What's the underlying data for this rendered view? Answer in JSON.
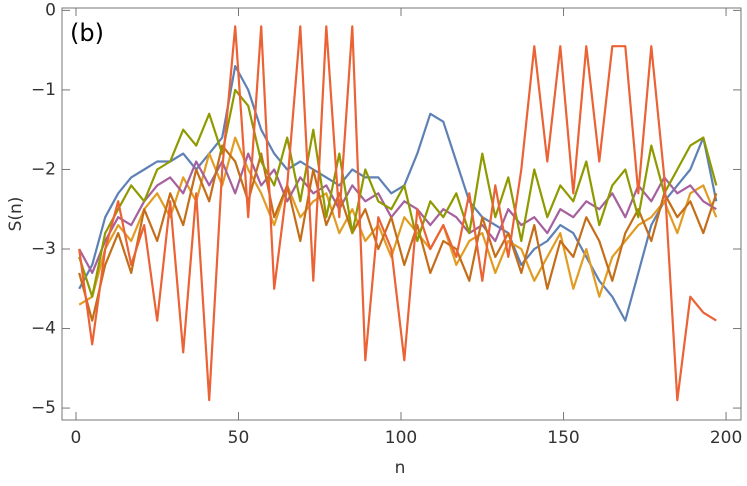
{
  "chart_data": {
    "type": "line",
    "annotation": "(b)",
    "x_label": "n",
    "y_label": "S(n)",
    "xlim": [
      -4.3,
      204.6
    ],
    "ylim": [
      -5.15,
      0.03
    ],
    "xticks": [
      0,
      50,
      100,
      150,
      200
    ],
    "yticks": [
      {
        "value": -5,
        "label": "−5"
      },
      {
        "value": -4,
        "label": "−4"
      },
      {
        "value": -3,
        "label": "−3"
      },
      {
        "value": -2,
        "label": "−2"
      },
      {
        "value": -1,
        "label": "−1"
      },
      0
    ],
    "x": [
      1,
      5,
      9,
      13,
      17,
      21,
      25,
      29,
      33,
      37,
      41,
      45,
      49,
      53,
      57,
      61,
      65,
      69,
      73,
      77,
      81,
      85,
      89,
      93,
      97,
      101,
      105,
      109,
      113,
      117,
      121,
      125,
      129,
      133,
      137,
      141,
      145,
      149,
      153,
      157,
      161,
      165,
      169,
      173,
      177,
      181,
      185,
      189,
      193,
      197
    ],
    "series": [
      {
        "color": "#5E81B5",
        "values": [
          -3.5,
          -3.2,
          -2.6,
          -2.3,
          -2.1,
          -2.0,
          -1.9,
          -1.9,
          -1.8,
          -2.0,
          -1.8,
          -1.6,
          -0.7,
          -1.0,
          -1.5,
          -1.8,
          -2.0,
          -1.9,
          -2.0,
          -2.1,
          -2.2,
          -2.0,
          -2.1,
          -2.1,
          -2.3,
          -2.2,
          -1.8,
          -1.3,
          -1.4,
          -1.9,
          -2.4,
          -2.6,
          -2.7,
          -2.8,
          -3.2,
          -3.0,
          -2.9,
          -2.7,
          -2.8,
          -3.1,
          -3.4,
          -3.6,
          -3.9,
          -3.3,
          -2.7,
          -2.4,
          -2.2,
          -2.0,
          -1.6,
          -2.4
        ]
      },
      {
        "color": "#E19C24",
        "values": [
          -3.7,
          -3.6,
          -3.0,
          -2.7,
          -2.9,
          -2.5,
          -2.3,
          -2.6,
          -2.1,
          -2.4,
          -1.8,
          -2.2,
          -1.6,
          -2.0,
          -2.3,
          -2.7,
          -2.2,
          -2.6,
          -2.4,
          -2.3,
          -2.8,
          -2.5,
          -2.9,
          -2.7,
          -3.1,
          -2.6,
          -2.8,
          -3.0,
          -2.7,
          -3.2,
          -2.9,
          -2.8,
          -3.3,
          -2.9,
          -3.0,
          -3.4,
          -3.1,
          -2.8,
          -3.5,
          -3.0,
          -3.6,
          -3.1,
          -2.9,
          -2.7,
          -2.6,
          -2.4,
          -2.8,
          -2.3,
          -2.2,
          -2.6
        ]
      },
      {
        "color": "#A5609D",
        "values": [
          -3.0,
          -3.3,
          -2.9,
          -2.6,
          -2.7,
          -2.4,
          -2.2,
          -2.1,
          -2.3,
          -1.9,
          -2.2,
          -1.9,
          -2.3,
          -1.8,
          -2.2,
          -2.0,
          -2.4,
          -2.1,
          -2.3,
          -2.2,
          -2.5,
          -2.2,
          -2.4,
          -2.3,
          -2.6,
          -2.4,
          -2.5,
          -2.7,
          -2.5,
          -2.6,
          -2.8,
          -2.7,
          -2.9,
          -2.5,
          -2.7,
          -2.6,
          -2.8,
          -2.5,
          -2.6,
          -2.4,
          -2.5,
          -2.3,
          -2.6,
          -2.2,
          -2.4,
          -2.1,
          -2.3,
          -2.2,
          -2.4,
          -2.5
        ]
      },
      {
        "color": "#C56E1A",
        "values": [
          -3.3,
          -3.9,
          -3.2,
          -2.8,
          -3.3,
          -2.5,
          -2.9,
          -2.3,
          -2.7,
          -2.0,
          -2.4,
          -1.7,
          -1.9,
          -2.4,
          -1.8,
          -2.6,
          -2.2,
          -2.9,
          -2.0,
          -2.7,
          -2.3,
          -2.8,
          -2.5,
          -3.0,
          -2.6,
          -3.2,
          -2.7,
          -3.3,
          -2.9,
          -3.0,
          -3.4,
          -2.6,
          -3.1,
          -2.8,
          -3.3,
          -2.7,
          -3.5,
          -2.9,
          -3.1,
          -2.6,
          -2.9,
          -3.4,
          -2.8,
          -2.5,
          -2.9,
          -2.3,
          -2.6,
          -2.4,
          -2.8,
          -2.3
        ]
      },
      {
        "color": "#8F9A00",
        "values": [
          -3.1,
          -3.6,
          -2.8,
          -2.5,
          -2.2,
          -2.4,
          -2.0,
          -1.9,
          -1.5,
          -1.7,
          -1.3,
          -1.8,
          -1.0,
          -1.2,
          -1.9,
          -2.2,
          -1.6,
          -2.4,
          -1.5,
          -2.6,
          -1.8,
          -2.8,
          -2.0,
          -2.4,
          -2.5,
          -2.2,
          -2.9,
          -2.4,
          -2.6,
          -2.3,
          -2.8,
          -1.8,
          -2.6,
          -2.1,
          -2.9,
          -2.0,
          -2.6,
          -2.2,
          -2.4,
          -1.9,
          -2.7,
          -2.2,
          -2.0,
          -2.6,
          -1.7,
          -2.3,
          -2.0,
          -1.7,
          -1.6,
          -2.2
        ]
      },
      {
        "color": "#EB6235",
        "values": [
          -3.0,
          -4.2,
          -3.0,
          -2.4,
          -3.2,
          -2.7,
          -3.9,
          -2.4,
          -4.3,
          -2.3,
          -4.9,
          -2.0,
          -0.2,
          -2.6,
          -0.2,
          -3.5,
          -2.2,
          -0.2,
          -3.4,
          -0.2,
          -2.6,
          -0.2,
          -4.4,
          -2.6,
          -3.0,
          -4.4,
          -2.5,
          -3.0,
          -2.7,
          -3.1,
          -2.3,
          -3.4,
          -2.2,
          -3.1,
          -2.0,
          -0.45,
          -1.9,
          -0.45,
          -2.3,
          -0.45,
          -1.9,
          -0.45,
          -0.45,
          -2.3,
          -0.45,
          -2.1,
          -4.9,
          -3.6,
          -3.8,
          -3.9
        ]
      }
    ]
  }
}
